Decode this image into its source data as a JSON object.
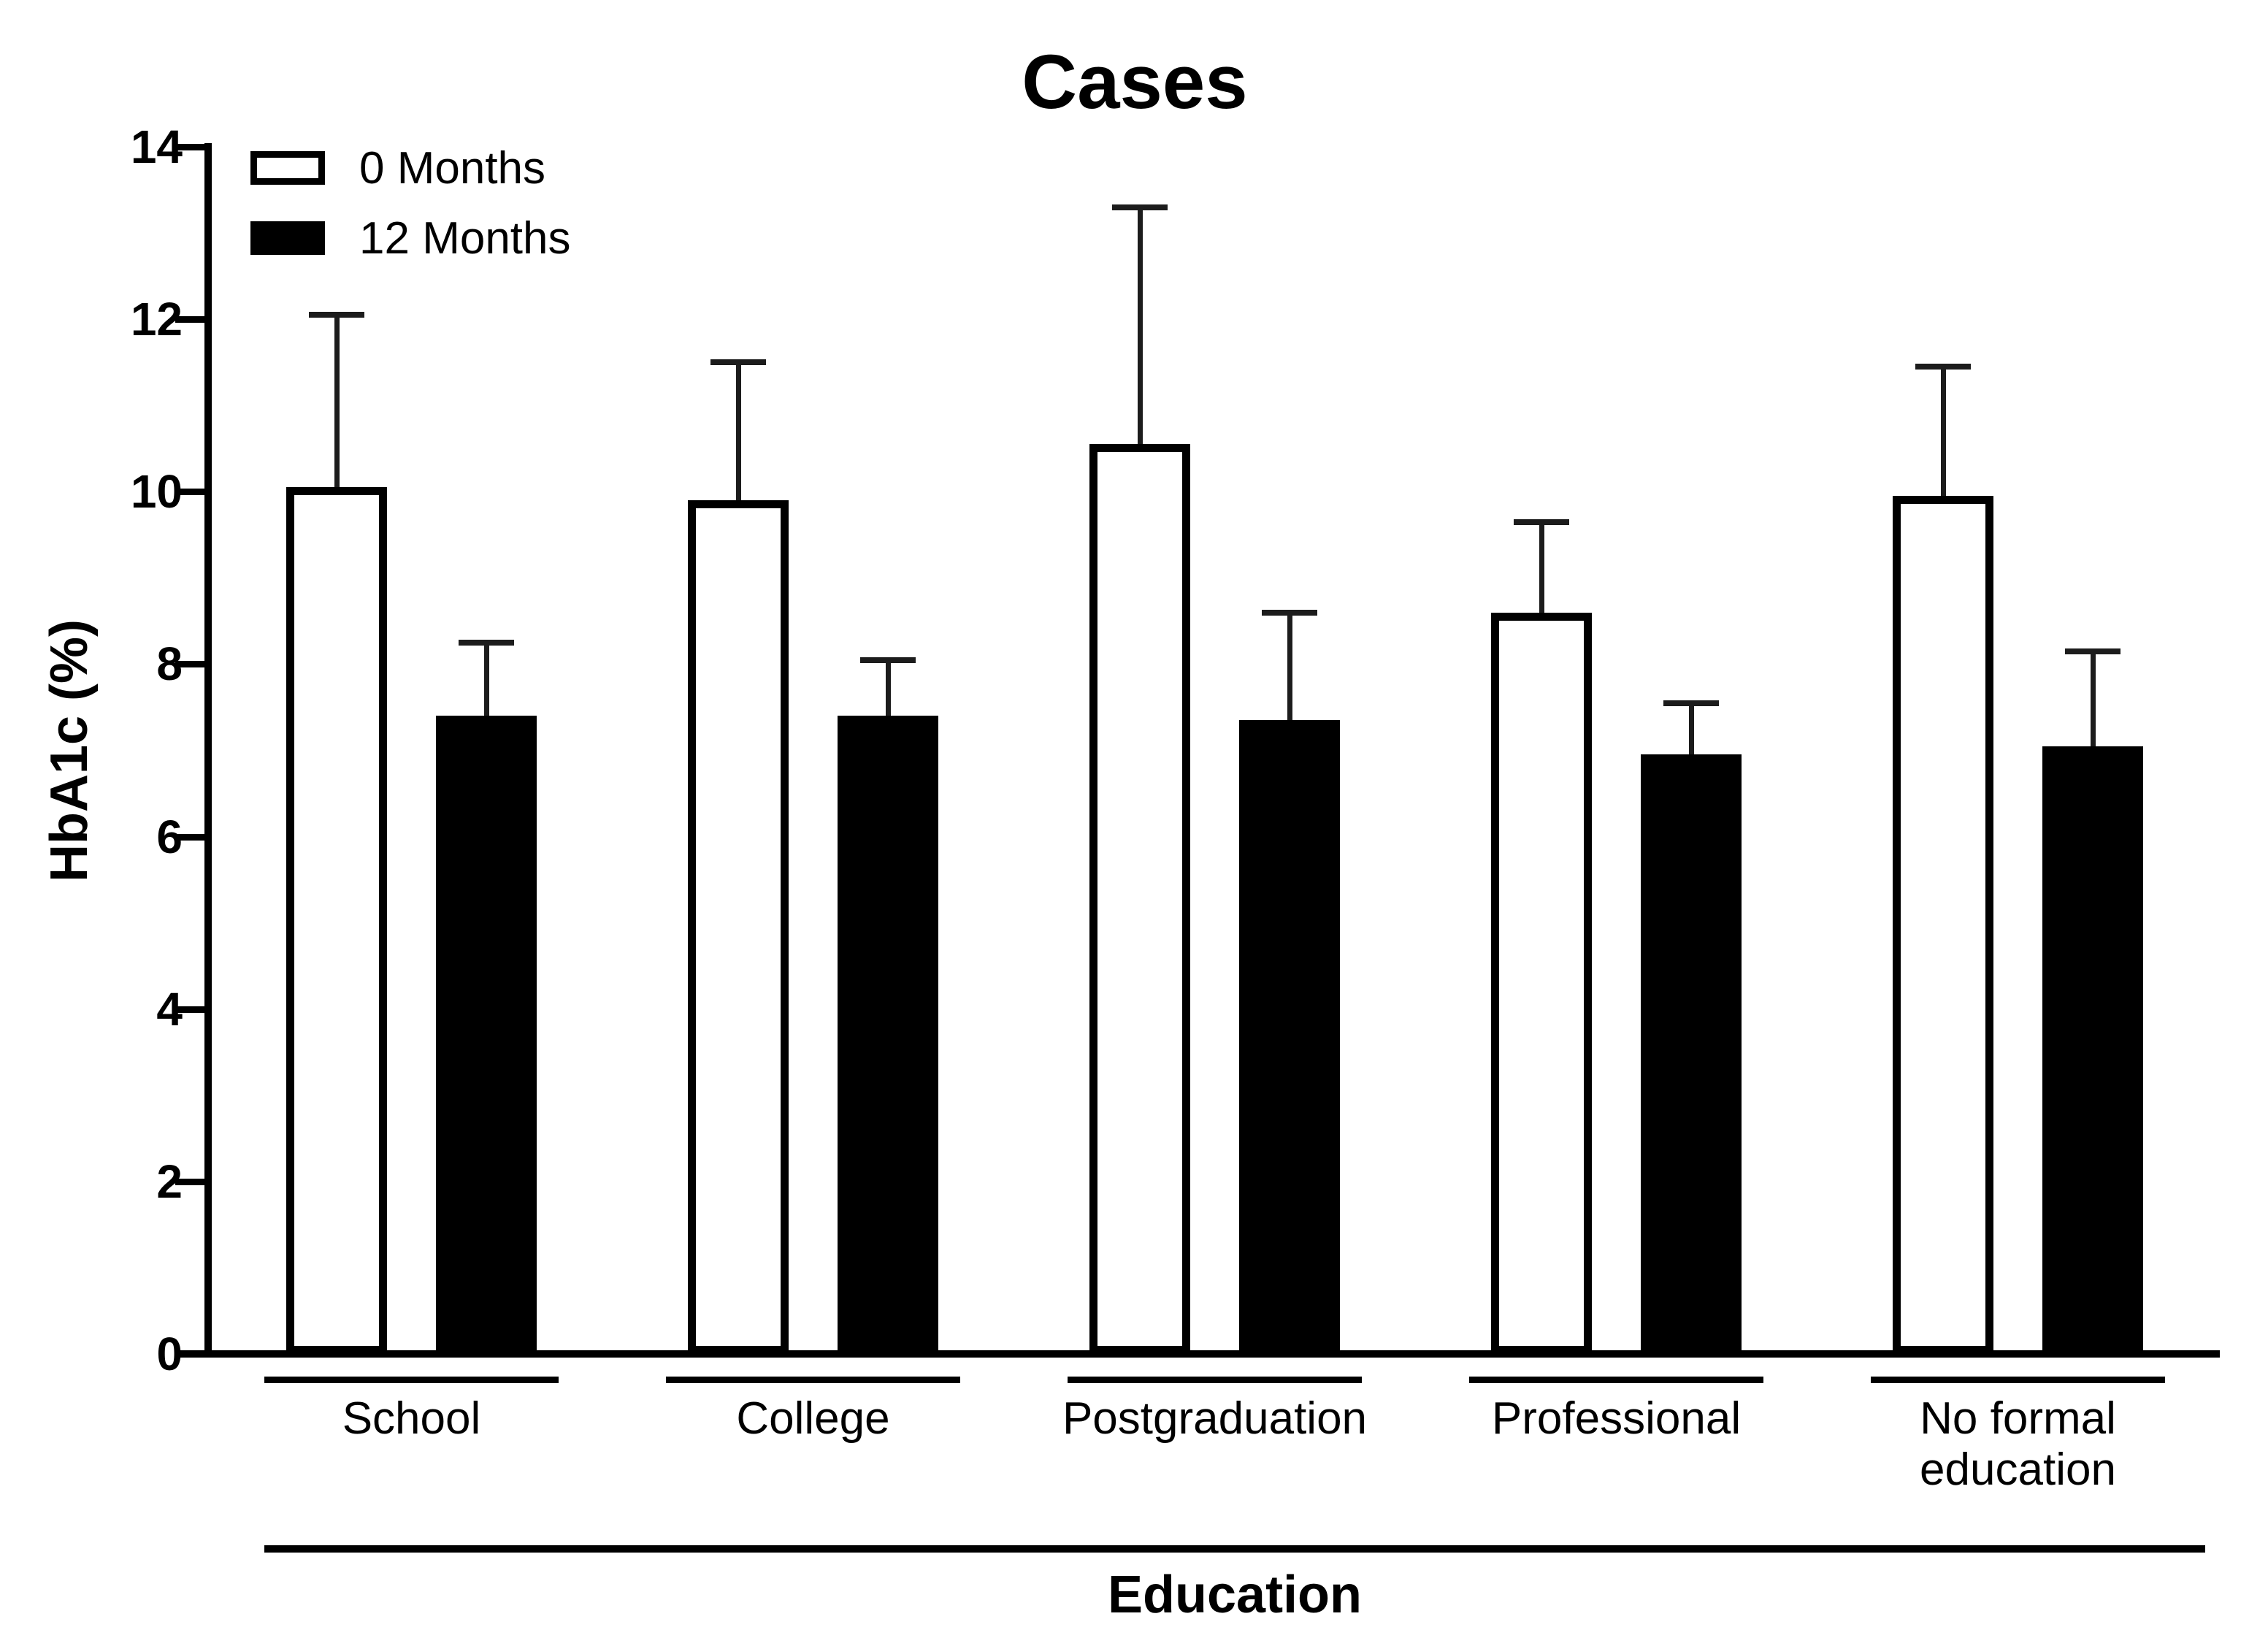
{
  "chart_data": {
    "type": "bar",
    "title": "Cases",
    "xlabel": "Education",
    "ylabel": "HbA1c (%)",
    "ylim": [
      0,
      14
    ],
    "yticks": [
      14,
      12,
      10,
      8,
      6,
      4,
      2,
      0
    ],
    "categories": [
      "School",
      "College",
      "Postgraduation",
      "Professional",
      "No formal\neducation"
    ],
    "series": [
      {
        "name": "0 Months",
        "fill": "open",
        "means": [
          10.05,
          9.9,
          10.55,
          8.6,
          9.95
        ],
        "sd_upper": [
          2.0,
          1.6,
          2.75,
          1.05,
          1.5
        ]
      },
      {
        "name": "12 Months",
        "fill": "solid",
        "means": [
          7.4,
          7.4,
          7.35,
          6.95,
          7.05
        ],
        "sd_upper": [
          0.85,
          0.65,
          1.25,
          0.6,
          1.1
        ]
      }
    ],
    "error_bars": "upper SD whiskers with caps",
    "legend_position": "top-left inside plot",
    "grid": false,
    "colors": {
      "open_bar_fill": "#ffffff",
      "solid_bar_fill": "#000000",
      "stroke": "#000000",
      "background": "#ffffff"
    }
  }
}
